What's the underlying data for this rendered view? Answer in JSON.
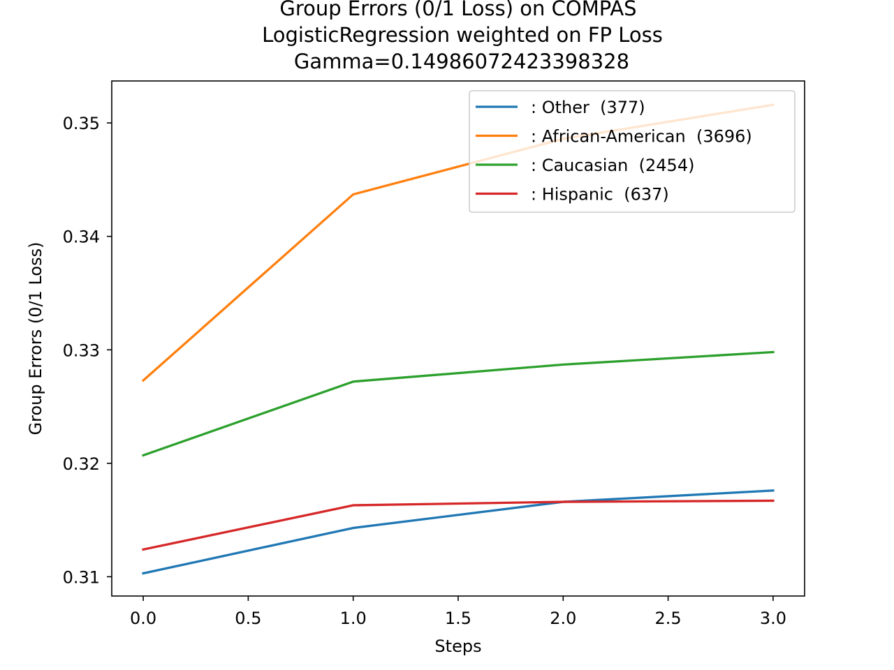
{
  "chart_data": {
    "type": "line",
    "title_lines": [
      "Group Errors (0/1 Loss) on COMPAS",
      "LogisticRegression weighted on FP Loss",
      "Gamma=0.14986072423398328"
    ],
    "xlabel": "Steps",
    "ylabel": "Group Errors (0/1 Loss)",
    "x": [
      0,
      1,
      2,
      3
    ],
    "xlim": [
      -0.15,
      3.15
    ],
    "ylim": [
      0.3083,
      0.3537
    ],
    "xticks": [
      0.0,
      0.5,
      1.0,
      1.5,
      2.0,
      2.5,
      3.0
    ],
    "xtick_labels": [
      "0.0",
      "0.5",
      "1.0",
      "1.5",
      "2.0",
      "2.5",
      "3.0"
    ],
    "yticks": [
      0.31,
      0.32,
      0.33,
      0.34,
      0.35
    ],
    "ytick_labels": [
      "0.31",
      "0.32",
      "0.33",
      "0.34",
      "0.35"
    ],
    "grid": false,
    "legend_position": "upper-right",
    "series": [
      {
        "name": ": Other  (377)",
        "color": "#1f77b4",
        "values": [
          0.3103,
          0.3143,
          0.3166,
          0.3176
        ]
      },
      {
        "name": ": African-American  (3696)",
        "color": "#ff7f0e",
        "values": [
          0.3273,
          0.3437,
          0.3486,
          0.3516
        ]
      },
      {
        "name": ": Caucasian  (2454)",
        "color": "#2ca02c",
        "values": [
          0.3207,
          0.3272,
          0.3287,
          0.3298
        ]
      },
      {
        "name": ": Hispanic  (637)",
        "color": "#d62728",
        "values": [
          0.3124,
          0.3163,
          0.3166,
          0.3167
        ]
      }
    ]
  }
}
